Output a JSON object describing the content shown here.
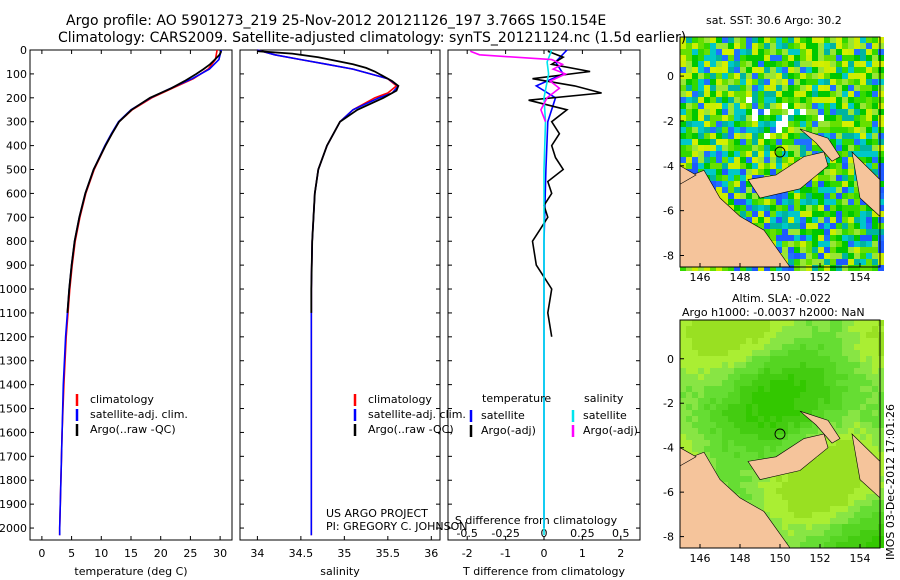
{
  "header": {
    "line1": "Argo profile: AO 5901273_219 25-Nov-2012 20121126_197 3.766S 150.154E",
    "line2": "Climatology: CARS2009. Satellite-adjusted climatology: synTS_20121124.nc (1.5d earlier)"
  },
  "map_sst": {
    "title": "sat. SST: 30.6 Argo: 30.2",
    "xticks": [
      "146",
      "148",
      "150",
      "152",
      "154"
    ],
    "yticks": [
      "0",
      "-2",
      "-4",
      "-6",
      "-8"
    ]
  },
  "map_sla": {
    "title1": "Altim. SLA: -0.022",
    "title2": "Argo h1000: -0.0037 h2000: NaN",
    "xticks": [
      "146",
      "148",
      "150",
      "152",
      "154"
    ],
    "yticks": [
      "0",
      "-2",
      "-4",
      "-6",
      "-8"
    ]
  },
  "credit": {
    "line1": "US ARGO PROJECT",
    "line2": "PI: GREGORY C. JOHNSON"
  },
  "footer_stamp": "IMOS 03-Dec-2012 17:01:26",
  "legend_profile": [
    "climatology",
    "satellite-adj. clim.",
    "Argo(..raw -QC)"
  ],
  "legend_diff": {
    "temp_head": "temperature",
    "sal_head": "salinity",
    "temp_items": [
      "satellite",
      "Argo(-adj)"
    ],
    "sal_items": [
      "satellite",
      "Argo(-adj)"
    ]
  },
  "colors": {
    "clim": "#ff0000",
    "sat": "#0000ff",
    "argo": "#000000",
    "sal_sat": "#00e5ee",
    "sal_argo": "#ff00ff",
    "land": "#f5c49b"
  },
  "chart_data": [
    {
      "type": "line",
      "xlabel": "temperature (deg C)",
      "ylabel": "",
      "xlim": [
        -2,
        32
      ],
      "ylim": [
        2050,
        0
      ],
      "xticks": [
        "0",
        "5",
        "10",
        "15",
        "20",
        "25",
        "30"
      ],
      "yticks": [
        "0",
        "100",
        "200",
        "300",
        "400",
        "500",
        "600",
        "700",
        "800",
        "900",
        "1000",
        "1100",
        "1200",
        "1300",
        "1400",
        "1500",
        "1600",
        "1700",
        "1800",
        "1900",
        "2000"
      ],
      "series": [
        {
          "name": "climatology",
          "depth": [
            0,
            40,
            80,
            120,
            160,
            200,
            250,
            300,
            350,
            400,
            500,
            600,
            700,
            800,
            900,
            1000,
            1200,
            1400,
            1600,
            1800,
            2000,
            2030
          ],
          "values": [
            29.5,
            29.2,
            28.0,
            25.5,
            22.0,
            18.5,
            15.2,
            13.0,
            11.8,
            10.7,
            8.8,
            7.4,
            6.4,
            5.6,
            5.1,
            4.7,
            4.1,
            3.7,
            3.4,
            3.2,
            3.0,
            3.0
          ]
        },
        {
          "name": "satellite-adj. clim.",
          "depth": [
            0,
            40,
            80,
            120,
            160,
            200,
            250,
            300,
            350,
            400,
            500,
            600,
            700,
            800,
            900,
            1000,
            1200,
            1400,
            1600,
            1800,
            2000,
            2030
          ],
          "values": [
            30.2,
            29.8,
            28.2,
            25.3,
            21.7,
            18.3,
            15.0,
            12.9,
            11.7,
            10.6,
            8.7,
            7.3,
            6.3,
            5.5,
            5.0,
            4.6,
            4.0,
            3.6,
            3.4,
            3.2,
            3.0,
            3.0
          ]
        },
        {
          "name": "Argo(..raw -QC)",
          "depth": [
            5,
            20,
            40,
            60,
            80,
            100,
            130,
            160,
            200,
            250,
            300,
            350,
            400,
            500,
            600,
            700,
            800,
            900,
            1000,
            1100
          ],
          "values": [
            30.2,
            29.9,
            29.1,
            28.3,
            27.2,
            26.0,
            24.0,
            21.8,
            18.2,
            15.1,
            13.0,
            11.8,
            10.7,
            8.7,
            7.3,
            6.3,
            5.5,
            5.0,
            4.6,
            4.3
          ]
        }
      ]
    },
    {
      "type": "line",
      "xlabel": "salinity",
      "ylabel": "",
      "xlim": [
        33.8,
        36.1
      ],
      "ylim": [
        2050,
        0
      ],
      "xticks": [
        "34",
        "34.5",
        "35",
        "35.5",
        "36"
      ],
      "series": [
        {
          "name": "climatology",
          "depth": [
            0,
            20,
            40,
            60,
            80,
            100,
            120,
            150,
            180,
            200,
            250,
            300,
            400,
            500,
            600,
            800,
            1000,
            1400,
            2000,
            2030
          ],
          "values": [
            34.0,
            34.2,
            34.5,
            34.8,
            35.1,
            35.3,
            35.5,
            35.6,
            35.5,
            35.35,
            35.1,
            34.95,
            34.8,
            34.7,
            34.66,
            34.63,
            34.62,
            34.62,
            34.62,
            34.62
          ]
        },
        {
          "name": "satellite-adj. clim.",
          "depth": [
            0,
            20,
            40,
            60,
            80,
            100,
            120,
            150,
            180,
            200,
            250,
            300,
            400,
            500,
            600,
            800,
            1000,
            1400,
            2000,
            2030
          ],
          "values": [
            34.0,
            34.2,
            34.5,
            34.8,
            35.1,
            35.3,
            35.5,
            35.62,
            35.55,
            35.4,
            35.1,
            34.95,
            34.8,
            34.7,
            34.66,
            34.63,
            34.62,
            34.62,
            34.62,
            34.62
          ]
        },
        {
          "name": "Argo(..raw -QC)",
          "depth": [
            5,
            15,
            30,
            45,
            60,
            75,
            90,
            110,
            130,
            150,
            170,
            200,
            250,
            300,
            400,
            500,
            600,
            800,
            1000,
            1100
          ],
          "values": [
            34.0,
            34.4,
            34.7,
            34.9,
            35.1,
            35.25,
            35.35,
            35.45,
            35.55,
            35.62,
            35.6,
            35.45,
            35.15,
            34.95,
            34.8,
            34.7,
            34.66,
            34.63,
            34.62,
            34.62
          ]
        }
      ]
    },
    {
      "type": "line",
      "xlabel": "T difference from climatology",
      "xlabel2": "S difference from climatology",
      "xlim": [
        -2.5,
        2.5
      ],
      "ylim": [
        2050,
        0
      ],
      "xticks": [
        "-2",
        "-1",
        "0",
        "1",
        "2"
      ],
      "xticks2": [
        "-0.5",
        "-0.25",
        "0",
        "0.25",
        "0.5"
      ],
      "series": [
        {
          "name": "temperature satellite",
          "depth": [
            0,
            50,
            100,
            150,
            200,
            300,
            500,
            800,
            1200,
            2000
          ],
          "values": [
            0.6,
            0.3,
            0.5,
            -0.2,
            0.3,
            0.1,
            0.05,
            0.0,
            0.0,
            0.0
          ]
        },
        {
          "name": "temperature Argo(-adj)",
          "depth": [
            5,
            30,
            60,
            90,
            120,
            150,
            180,
            210,
            250,
            300,
            350,
            400,
            450,
            500,
            550,
            600,
            650,
            700,
            750,
            800,
            900,
            1000,
            1100,
            1200
          ],
          "values": [
            0.1,
            0.5,
            0.2,
            1.2,
            -0.3,
            0.8,
            1.5,
            -0.4,
            0.6,
            0.2,
            0.4,
            0.2,
            0.3,
            0.5,
            0.1,
            0.2,
            0.0,
            0.1,
            -0.1,
            -0.3,
            -0.2,
            0.2,
            0.1,
            0.2
          ]
        },
        {
          "name": "salinity satellite",
          "depth": [
            0,
            50,
            100,
            200,
            300,
            500,
            1000,
            2030
          ],
          "values": [
            0.05,
            0.02,
            0.03,
            0.0,
            0.01,
            0.0,
            0.0,
            0.0
          ]
        },
        {
          "name": "salinity Argo(-adj)",
          "depth": [
            5,
            20,
            40,
            60,
            80,
            100,
            130,
            160,
            200,
            250,
            300
          ],
          "values": [
            -0.48,
            -0.42,
            0.05,
            0.12,
            0.06,
            0.14,
            0.04,
            0.1,
            0.02,
            -0.02,
            0.01
          ]
        }
      ]
    }
  ]
}
